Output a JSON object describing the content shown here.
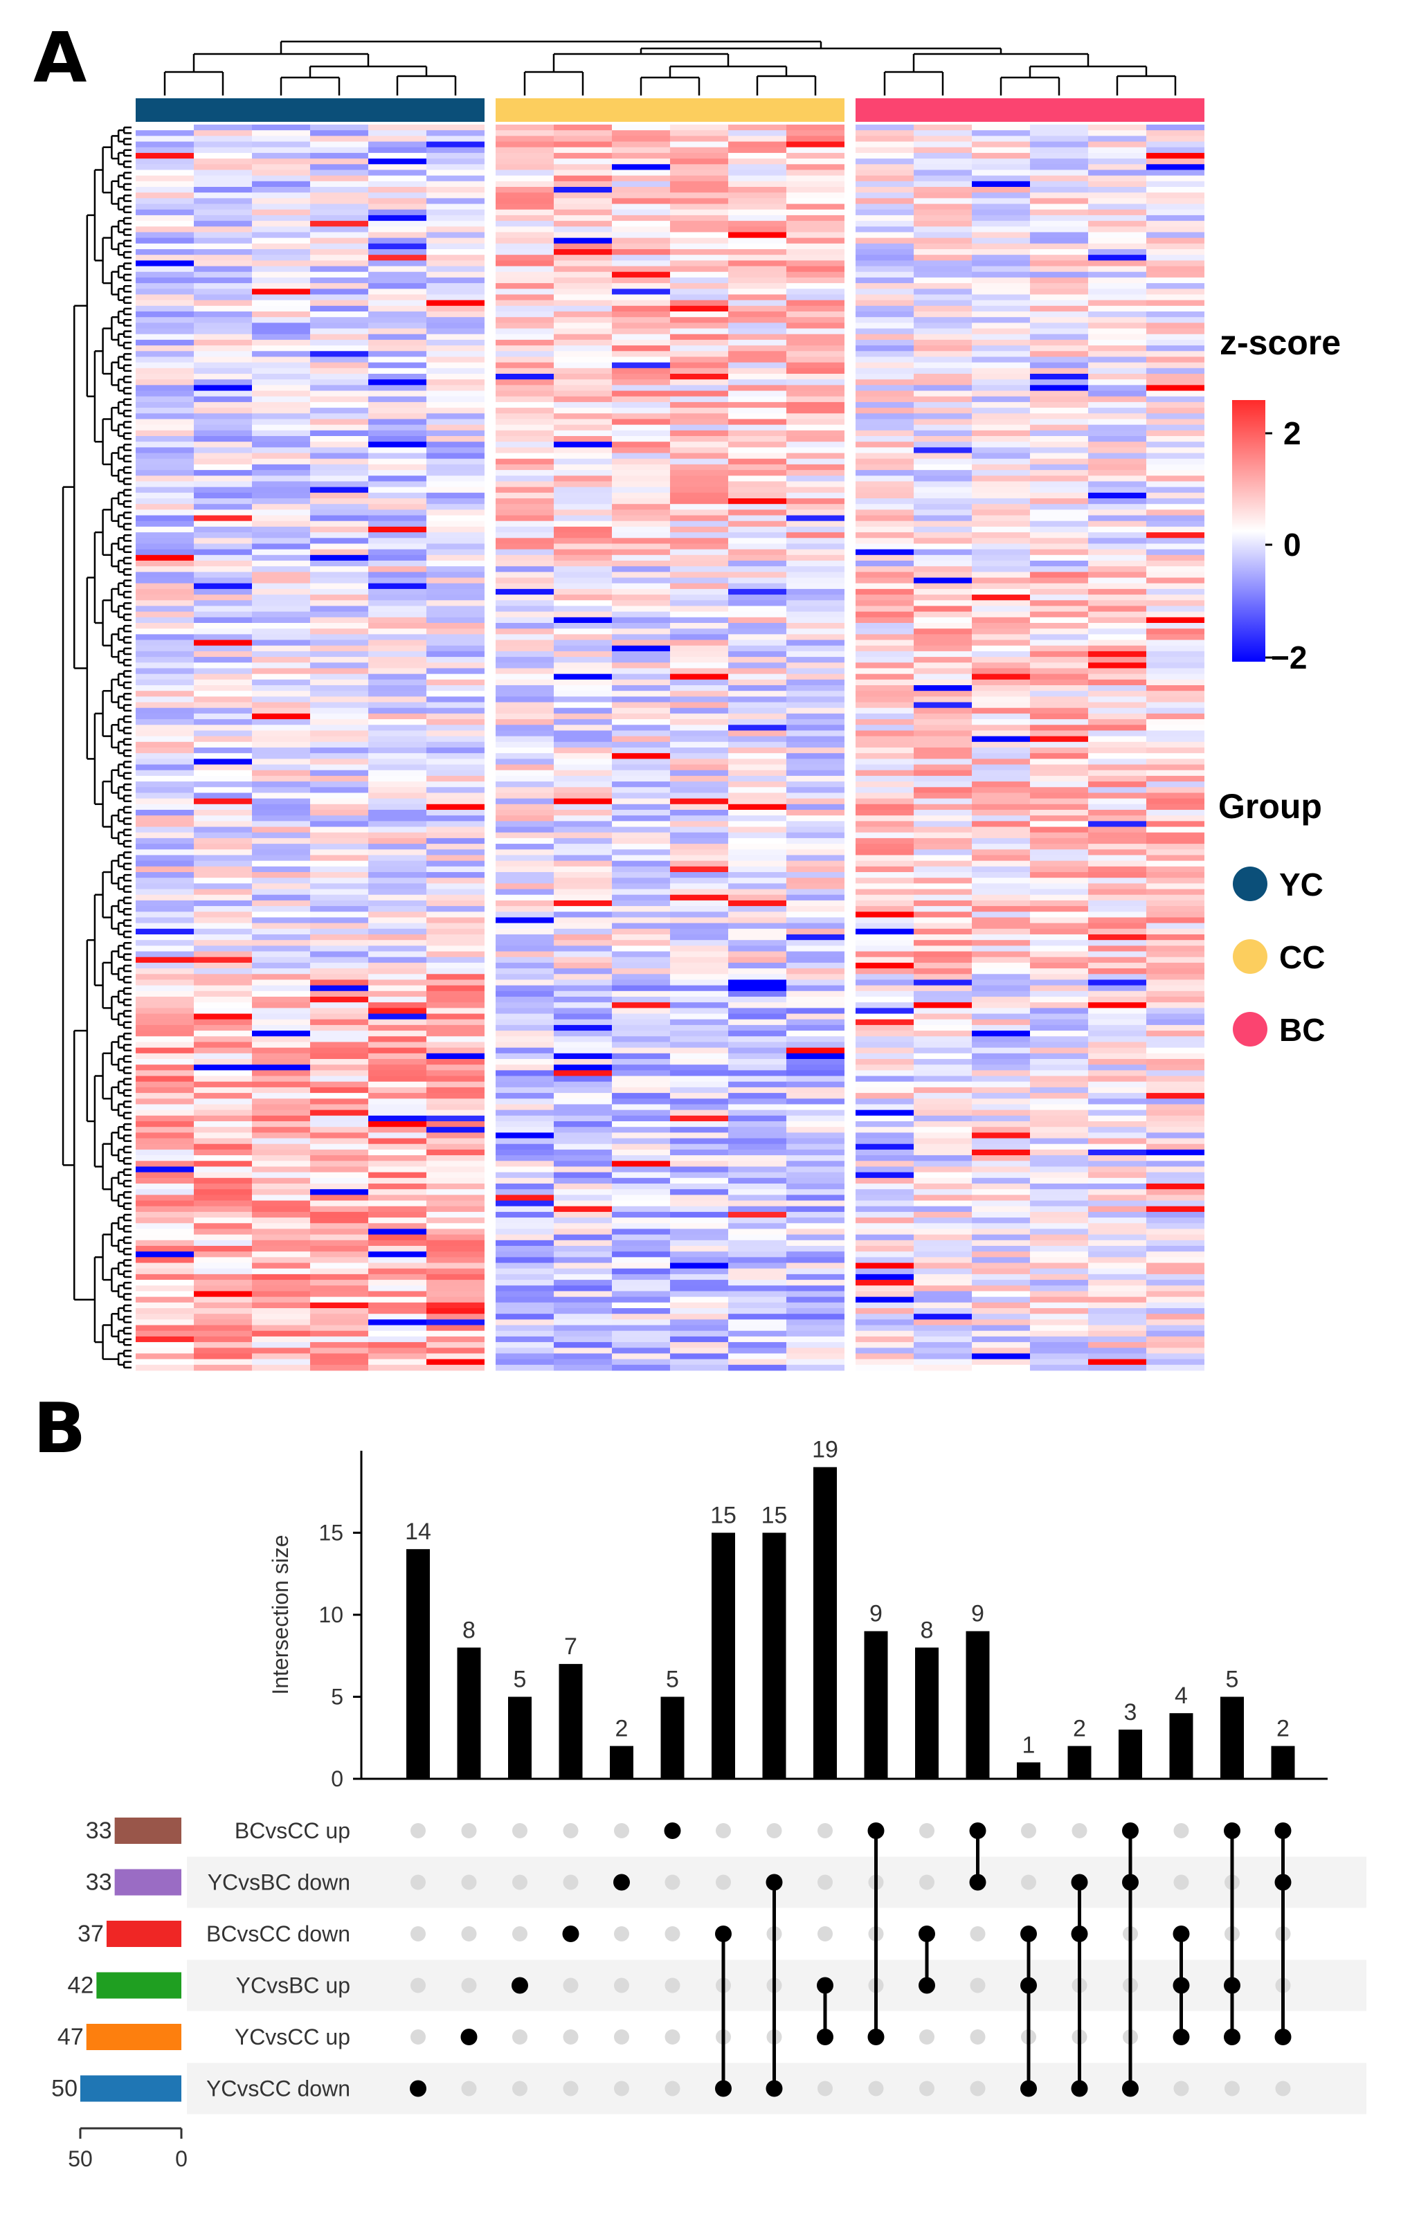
{
  "panel_a": {
    "letter": "A",
    "heatmap": {
      "colors": {
        "low": "#0000ff",
        "mid": "#ffffff",
        "high": "#ff0000"
      },
      "groups": [
        {
          "name": "YC",
          "color": "#0b4f79",
          "samples": 6
        },
        {
          "name": "CC",
          "color": "#fcce5e",
          "samples": 6
        },
        {
          "name": "BC",
          "color": "#fb4470",
          "samples": 6
        }
      ],
      "rows": 220
    },
    "legend": {
      "zscore_title": "z-score",
      "zscore_ticks": [
        "2",
        "0",
        "−2"
      ],
      "group_title": "Group",
      "group_items": [
        "YC",
        "CC",
        "BC"
      ]
    }
  },
  "panel_b": {
    "letter": "B",
    "y_axis_label": "Intersection size",
    "size_axis_ticks": [
      "50",
      "0"
    ]
  },
  "chart_data": [
    {
      "type": "heatmap",
      "title": "z-score",
      "value_range": [
        -2,
        2
      ],
      "columns": [
        "YC",
        "YC",
        "YC",
        "YC",
        "YC",
        "YC",
        "CC",
        "CC",
        "CC",
        "CC",
        "CC",
        "CC",
        "BC",
        "BC",
        "BC",
        "BC",
        "BC",
        "BC"
      ],
      "n_rows": 220
    },
    {
      "type": "bar",
      "title": "",
      "xlabel": "",
      "ylabel": "Intersection size",
      "ylim": [
        0,
        20
      ],
      "yticks": [
        0,
        5,
        10,
        15
      ],
      "values": [
        14,
        8,
        5,
        7,
        2,
        5,
        15,
        15,
        19,
        9,
        8,
        9,
        1,
        2,
        3,
        4,
        5,
        2
      ],
      "sets": [
        {
          "name": "BCvsCC up",
          "size": 33,
          "color": "#99564a"
        },
        {
          "name": "YCvsBC down",
          "size": 33,
          "color": "#9a6cc4"
        },
        {
          "name": "BCvsCC down",
          "size": 37,
          "color": "#ef2625"
        },
        {
          "name": "YCvsBC up",
          "size": 42,
          "color": "#1f9f21"
        },
        {
          "name": "YCvsCC up",
          "size": 47,
          "color": "#fd7f0e"
        },
        {
          "name": "YCvsCC down",
          "size": 50,
          "color": "#1f76b4"
        }
      ],
      "intersections": [
        [
          5
        ],
        [
          4
        ],
        [
          3
        ],
        [
          2
        ],
        [
          1
        ],
        [
          0
        ],
        [
          2,
          5
        ],
        [
          1,
          5
        ],
        [
          3,
          4
        ],
        [
          0,
          4
        ],
        [
          2,
          3
        ],
        [
          0,
          1
        ],
        [
          2,
          3,
          5
        ],
        [
          1,
          2,
          5
        ],
        [
          0,
          1,
          5
        ],
        [
          2,
          3,
          4
        ],
        [
          0,
          3,
          4
        ],
        [
          0,
          1,
          4
        ]
      ]
    }
  ]
}
